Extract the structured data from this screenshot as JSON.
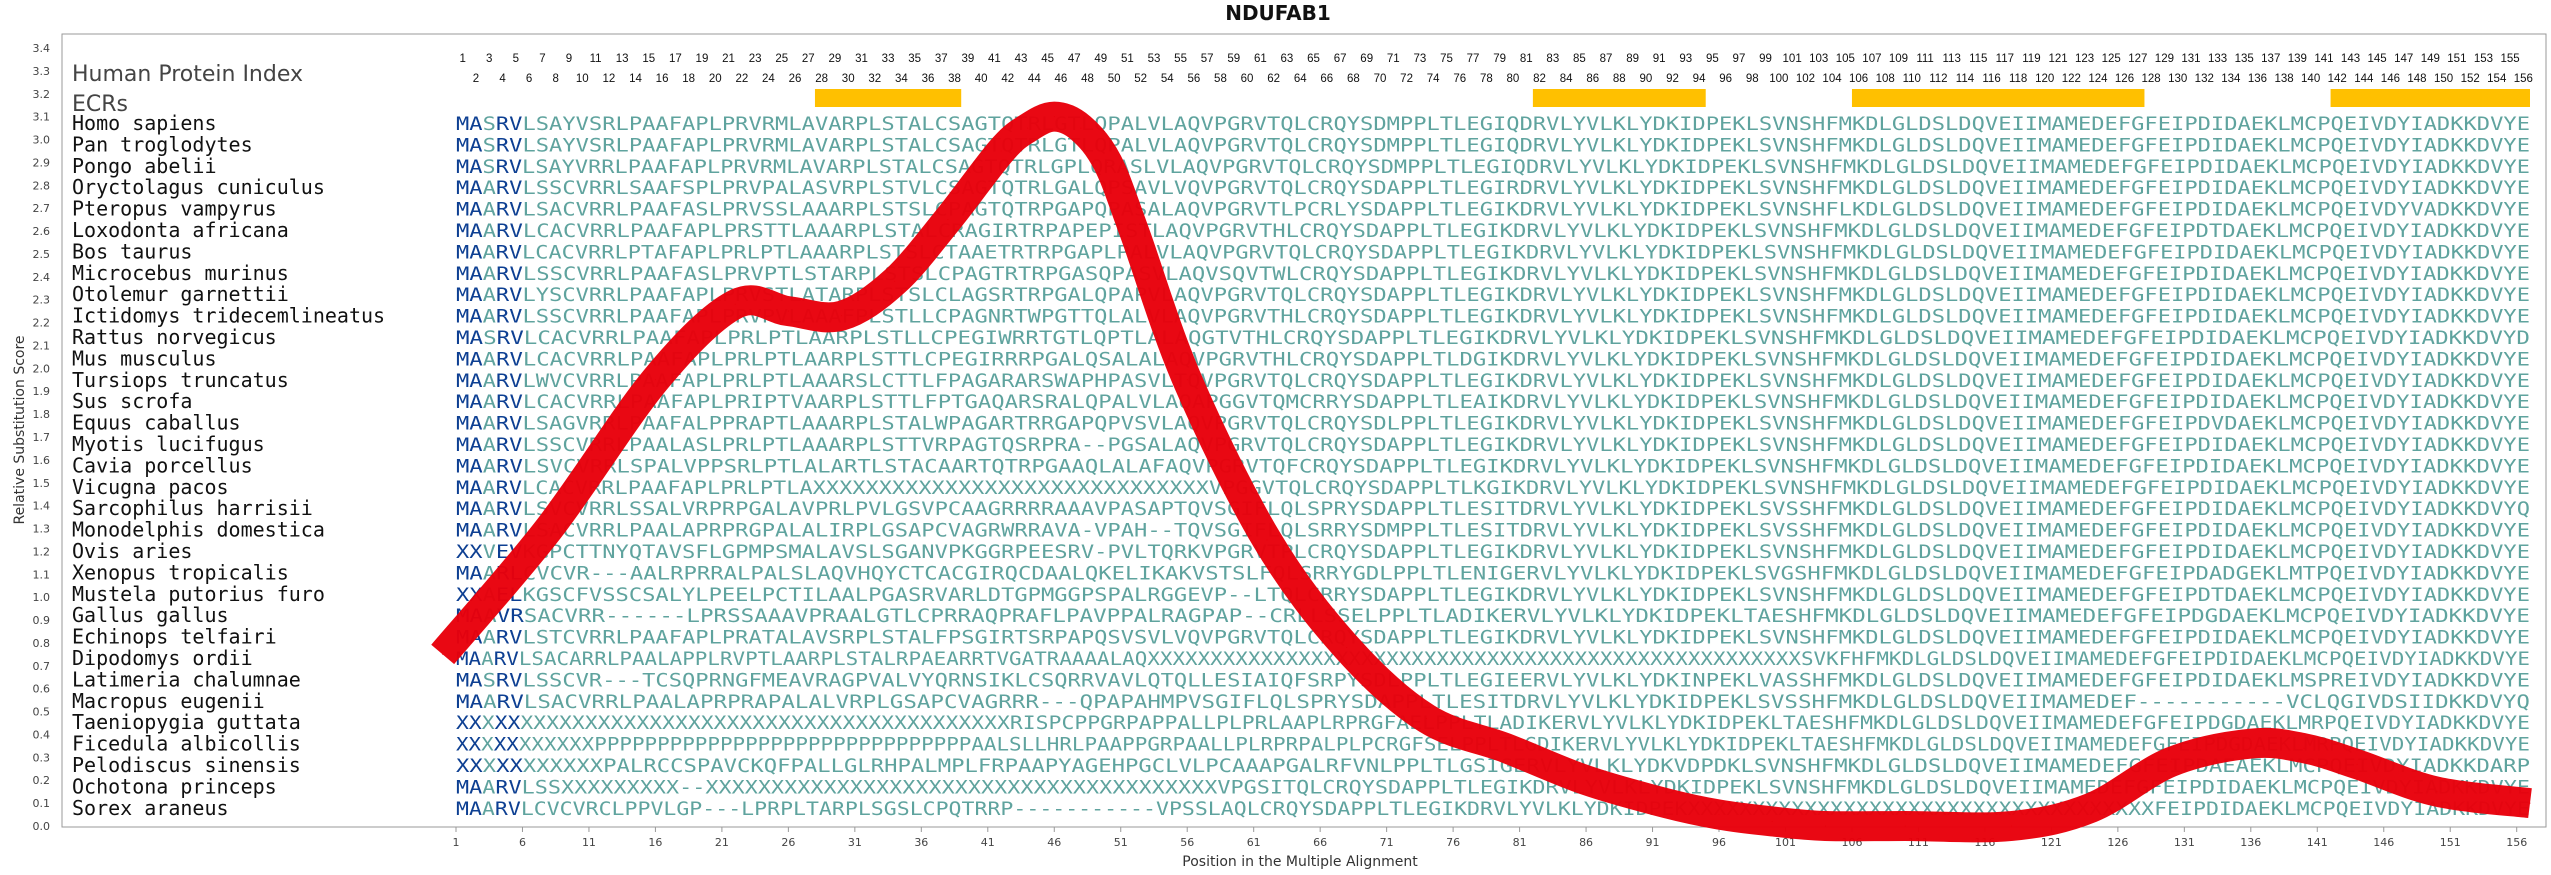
{
  "chart_data": {
    "type": "line",
    "title": "NDUFAB1",
    "xlabel": "Position in the Multiple Alignment",
    "ylabel": "Relative Substitution Score",
    "ylim": [
      0,
      3.4
    ],
    "xlim": [
      1,
      157
    ],
    "y_ticks": [
      "0.0",
      "0.1",
      "0.2",
      "0.3",
      "0.4",
      "0.5",
      "0.6",
      "0.7",
      "0.8",
      "0.9",
      "1.0",
      "1.1",
      "1.2",
      "1.3",
      "1.4",
      "1.5",
      "1.6",
      "1.7",
      "1.8",
      "1.9",
      "2.0",
      "2.1",
      "2.2",
      "2.3",
      "2.4",
      "2.5",
      "2.6",
      "2.7",
      "2.8",
      "2.9",
      "3.0",
      "3.1",
      "3.2",
      "3.3",
      "3.4"
    ],
    "x_ticks": [
      1,
      6,
      11,
      16,
      21,
      26,
      31,
      36,
      41,
      46,
      51,
      56,
      61,
      66,
      71,
      76,
      81,
      86,
      91,
      96,
      101,
      106,
      111,
      116,
      121,
      126,
      131,
      136,
      141,
      146,
      151,
      156
    ],
    "row_labels": [
      "Human Protein Index",
      "ECRs"
    ],
    "ecrs": [
      [
        28,
        39
      ],
      [
        82,
        95
      ],
      [
        106,
        128
      ],
      [
        142,
        157
      ]
    ],
    "series": [
      {
        "color": "#e8000b",
        "x": [
          0,
          8,
          16,
          22,
          26,
          30,
          34,
          38,
          42,
          44,
          46,
          48,
          50,
          52,
          56,
          62,
          68,
          74,
          80,
          86,
          92,
          96,
          100,
          104,
          110,
          118,
          124,
          130,
          136,
          140,
          144,
          150,
          157
        ],
        "y": [
          0.75,
          1.3,
          1.95,
          2.28,
          2.25,
          2.23,
          2.38,
          2.65,
          2.95,
          3.05,
          3.1,
          3.05,
          2.9,
          2.6,
          1.95,
          1.25,
          0.78,
          0.47,
          0.34,
          0.2,
          0.1,
          0.05,
          0.02,
          0.0,
          0.0,
          0.0,
          0.08,
          0.28,
          0.36,
          0.34,
          0.27,
          0.15,
          0.1
        ]
      }
    ],
    "alignment": {
      "species": [
        "Homo sapiens",
        "Pan troglodytes",
        "Pongo abelii",
        "Oryctolagus cuniculus",
        "Pteropus vampyrus",
        "Loxodonta africana",
        "Bos taurus",
        "Microcebus murinus",
        "Otolemur garnettii",
        "Ictidomys tridecemlineatus",
        "Rattus norvegicus",
        "Mus musculus",
        "Tursiops truncatus",
        "Sus scrofa",
        "Equus caballus",
        "Myotis lucifugus",
        "Cavia porcellus",
        "Vicugna pacos",
        "Sarcophilus harrisii",
        "Monodelphis domestica",
        "Ovis aries",
        "Xenopus tropicalis",
        "Mustela putorius furo",
        "Gallus gallus",
        "Echinops telfairi",
        "Dipodomys ordii",
        "Latimeria chalumnae",
        "Macropus eugenii",
        "Taeniopygia guttata",
        "Ficedula albicollis",
        "Pelodiscus sinensis",
        "Ochotona princeps",
        "Sorex araneus"
      ],
      "sequences": [
        "MASRVLSAYVSRLPAAFAPLPRVRMLAVARPLSTALCSAGTQTRLGTLQPALVLAQVPGRVTQLCRQYSDMPPLTLEGIQDRVLYVLKLYDKIDPEKLSVNSHFMKDLGLDSLDQVEIIMAMEDEFGFEIPDIDAEKLMCPQEIVDYIADKKDVYE",
        "MASRVLSAYVSRLPAAFAPLPRVRMLAVARPLSTALCSAGTQTRLGTLQPALVLAQVPGRVTQLCRQYSDMPPLTLEGIQDRVLYVLKLYDKIDPEKLSVNSHFMKDLGLDSLDQVEIIMAMEDEFGFEIPDIDAEKLMCPQEIVDYIADKKDVYE",
        "MASRVLSAYVRRLPAAFAPLPRVRMLAVARPLSTALCSAGTQTRLGPLQRASLVLAQVPGRVTQLCRQYSDMPPLTLEGIQDRVLYVLKLYDKIDPEKLSVNSHFMKDLGLDSLDQVEIIMAMEDEFGFEIPDIDAEKLMCPQEIVDYIADKKDVYE",
        "MAARVLSSCVRRLSAAFSPLPRVPALASVRPLSTVLCSAGTQTRLGALQPSAVLVQVPGRVTQLCRQYSDAPPLTLEGIRDRVLYVLKLYDKIDPEKLSVNSHFMKDLGLDSLDQVEIIMAMEDEFGFEIPDIDAEKLMCPQEIVDYIADKKDVYE",
        "MAARVLSACVRRLPAAFASLPRVSSLAAARPLSTSLCPAGTQTRPGAPQPASALAQVPGRVTLPCRLYSDAPPLTLEGIKDRVLYVLKLYDKIDPEKLSVNSHFLKDLGLDSLDQVEIIMAMEDEFGFEIPDIDAEKLMCPQEIVDYVADKKDVYE",
        "MAARVLCACVRRLPAAFAPLPRSTTLAAARPLSTALCRAGIRTRPAPEPISTLAQVPGRVTHLCRQYSDAPPLTLEGIKDRVLYVLKLYDKIDPEKLSVNSHFMKDLGLDSLDQVEIIMAMEDEFGFEIPDTDAEKLMCPQEIVDYIADKKDVYE",
        "MAARVLCACVRRLPTAFAPLPRLPTLAAARPLSTSLCTAAETRTRPGAPLPALVLAQVPGRVTQLCRQYSDAPPLTLEGIKDRVLYVLKLYDKIDPEKLSVNSHFMKDLGLDSLDQVEIIMAMEDEFGFEIPDIDAEKLMCPQEIVDYIADKKDVYE",
        "MAARVLSSCVRRLPAAFASLPRVPTLSTARPLSTSLCPAGTRTRPGASQPASVLAQVSQVTWLCRQYSDAPPLTLEGIKDRVLYVLKLYDKIDPEKLSVNSHFMKDLGLDSLDQVEIIMAMEDEFGFEIPDIDAEKLMCPQEIVDYIADKKDVYE",
        "MAARVLYSCVRRLPAAFAPLPRVSTLATARPLSTSLCLAGSRTRPGALQPAPVLAQVPGRVTQLCRQYSDAPPLTLEGIKDRVLYVLKLYDKIDPEKLSVNSHFMKDLGLDSLDQVEIIMAMEDEFGFEIPDIDAEKLMCPQEIVDYIADKKDVYE",
        "MAARVLSSCVRRLPAAFAPLPRVPVLAAAFPLSTLLCPAGNRTWPGTTQLALVLAQVPGRVTHLCRQYSDAPPLTLEGIKDRVLYVLKLYDKIDPEKLSVNSHFMKDLGLDSLDQVEIIMAMEDEFGFEIPDIDAEKLMCPQEIVDYIADKKDVYE",
        "MASRVLCACVRRLPAAFAPLPRLPTLAARPLSTLLCPEGIWRRTGTLQPTLALAQGTVTHLCRQYSDAPPLTLEGIKDRVLYVLKLYDKIDPEKLSVNSHFMKDLGLDSLDQVEIIMAMEDEFGFEIPDIDAEKLMCPQEIVDYIADKKDVYD",
        "MAARVLCACVRRLPAAFAPLPRLPTLAARPLSTTLCPEGIRRRPGALQSALALAQVPGRVTHLCRQYSDAPPLTLDGIKDRVLYVLKLYDKIDPEKLSVNSHFMKDLGLDSLDQVEIIMAMEDEFGFEIPDIDAEKLMCPQEIVDYIADKKDVYE",
        "MAARVLWVCVRRLPAAFAPLPRLPTLAAARSLCTTLFPAGARARSWAPHPASVLTQVPGRVTQLCRQYSDAPPLTLEGIKDRVLYVLKLYDKIDPEKLSVNSHFMKDLGLDSLDQVEIIMAMEDEFGFEIPDIDAEKLMCPQEIVDYIADKKDVYE",
        "MAARVLCACVRRLPAAFAPLPRIPTVAARPLSTTLFPTGAQARSRALQPALVLAQAPGGVTQMCRRYSDAPPLTLEAIKDRVLYVLKLYDKIDPEKLSVNSHFMKDLGLDSLDQVEIIMAMEDEFGFEIPDIDAEKLMCPQEIVDYIADKKDVYE",
        "MAARVLSAGVRRLPAAFALPPRAPTLAAARPLSTALWPAGARTRRGAPQPVSVLAQVPGRVTQLCRQYSDLPPLTLEGIKDRVLYVLKLYDKIDPEKLSVNSHFMKDLGLDSLDQVEIIMAMEDEFGFEIPDVDAEKLMCPQEIVDYIADKKDVYE",
        "MAARVLSSCVRRLPAALASLPRLPTLAAARPLSTTVRPAGTQSRPRA--PGSALAQVPGRVTQLCRQYSDAPPLTLEGIKDRVLYVLKLYDKIDPEKLSVNSHFMKDLGLDSLDQVEIIMAMEDEFGFEIPDIDAEKLMCPQEIVDYIADKKDVYE",
        "MAARVLSVCVRRLSPALVPPSRLPTLALARTLSTACAARTQTRPGAAQLALAFAQVPGRVTQFCRQYSDAPPLTLEGIKDRVLYVLKLYDKIDPEKLSVNSHFMKDLGLDSLDQVEIIMAMEDEFGFEIPDIDAEKLMCPQEIVDYIADKKDVYE",
        "MAARVLCACVRRLPAAFAPLPRLPTLAXXXXXXXXXXXXXXXXXXXXXXXXXXXXXXVPGGVTQLCRQYSDAPPLTLKGIKDRVLYVLKLYDKIDPEKLSVNSHFMKDLGLDSLDQVEIIMAMEDEFGFEIPDIDAEKLMCPQEIVDYIADKKDVYE",
        "MAARVLSVCVRRLSSALVRPRPGALAVPRLPVLGSVPCAAGRRRRAAAVPASAPTQVSGIFLQLSPRYSDAPPLTLESITDRVLYVLKLYDKIDPEKLSVSSHFMKDLGLDSLDQVEIIMAMEDEFGFEIPDIDAEKLMCPQEIVDYIADKKDVYQ",
        "MAARVLSACVRRLPAALAPRPRGPALALIRPLGSAPCVAGRWRRAVA-VPAH--TQVSGIFLQLSRRYSDMPPLTLESITDRVLYVLKLYDKIDPEKLSVSSHFMKDLGLDSLDQVEIIMAMEDEFGFEIPDIDAEKLMCPQEIVDYIADKKDVYE",
        "XXVEVKGPCTTNYQTAVSFLGPMPSMALAVSLSGANVPKGGRPEESRV-PVLTQRKVPGRVTPLCRQYSDAPPLTLEGIKDRVLYVLKLYDKIDPEKLSVNSHFMKDLGLDSLDQVEIIMAMEDEFGFEIPDIDAEKLMCPQEIVDYIADKKDVYE",
        "MAARLCVCVR---AALRPRRALPALSLAQVHQYCTCACGIRQCDAALQKELIKAKVSTSLFQLSRRYGDLPPLTLENIGERVLYVLKLYDKIDPEKLSVGSHFMKDLGLDSLDQVEIIMAMEDEFGFEIPDADGEKLMTPQEIVDYIADKKDVYE",
        "XXAELKGSCFVSSCSALYLPEELPCTILAALPGASRVARLDTGPMGGPSPALRGGEVP--LTQLCRRYSDAPPLTLEGIKDRVLYVLKLYDKIDPEKLSVNSHFMKDLGLDSLDQVEIIMAMEDEFGFEIPDTDAEKLMCPQEIVDYIADKKDVYE",
        "MAAVRSACVRR------LPRSSAAAVPRAALGTLCPRRAQPRAFLPAVPPALRAGPAP--CRLLSSELPPLTLADIKERVLYVLKLYDKIDPEKLTAESHFMKDLGLDSLDQVEIIMAMEDEFGFEIPDGDAEKLMCPQEIVDYIADKKDVYE",
        "MAARVLSTCVRRLPAAFAPLPRATALAVSRPLSTALFPSGIRTSRPAPQSVSVLVQVPGRVTQLCRQYSDAPPLTLEGIKDRVLYVLKLYDKIDPEKLSVNSHFMKDLGLDSLDQVEIIMAMEDEFGFEIPDIDAEKLMCPQEIVDYIADKKDVYE",
        "MAARVLSACARRLPAALAPPLRVPTLAARPLSTALRPAEARRTVGATRAAAALAQXXXXXXXXXXXXXXXXXXXXXXXXXXXXXXXXXXXXXXXXXXXXXXXXXXXXSVKFHFMKDLGLDSLDQVEIIMAMEDEFGFEIPDIDAEKLMCPQEIVDYIADKKDVYE",
        "MASRVLSSCVR---TCSQPRNGFMEAVRAGPVALVYQRNSIKLCSQRRVAVLQTQLLESIAIQFSRPYSDLPPLTLEGIEERVLYVLKLYDKINPEKLVASSHFMKDLGLDSLDQVEIIMAMEDEFGFEIPDIDAEKLMSPREIVDYIADKKDVYE",
        "MAARVLSACVRRLPAALAPRPRAPALALVRPLGSAPCVAGRRR---QPAPAHMPVSGIFLQLSPRYSDAPPLTLESITDRVLYVLKLYDKIDPEKLSVSSHFMKDLGLDSLDQVEIIMAMEDEF-----------VCLQGIVDSIIDKKDVYQ",
        "XXXXXXXXXXXXXXXXXXXXXXXXXXXXXXXXXXXXXXXXXXXRISPCPPGRPAPPALLPLPRLAAPLRPRGFAELPPLTLADIKERVLYVLKLYDKIDPEKLTAESHFMKDLGLDSLDQVEIIMAMEDEFGFEIPDGDAEKLMRPQEIVDYIADKKDVYE",
        "XXXXXXXXXXXPPPPPPPPPPPPPPPPPPPPPPPPPPPPPPAALSLLHRLPAAPPGRPAALLPLRPRPALPLPCRGFSELPPLTLGDIKERVLYVLKLYDKIDPEKLTAESHFMKDLGLDSLDQVEIIMAMEDEFGFEIPDGDAEKLMRPQEIVDYIADKKDVYE",
        "XXXXXXXXXXXPALRCCSPAVCKQFPALLGLRHPALMPLFRPAAPYAGEHPGCLVLPCAAAPGALRFVNLPPLTLGSIGERVLYVLKLYDKVDPDKLSVNSHFMKDLGLDSLDQVEIIMAMEDEFGFEIPDAEAEKLMCPQEIVDYIADKKDARP",
        "MAARVLSSXXXXXXXXX--XXXXXXXXXXXXXXXXXXXXXXXXXXXXXXXXXXXXXXXVPGSITQLCRQYSDAPPLTLEGIKDRVLYVLKLYDKIDPEKLSVNSHFMKDLGLDSLDQVEIIMAMEDEFGFEIPDIDAEKLMCPQEIVDYIADKKDVYE",
        "MAARVLCVCVRCLPPVLGP---LPRPLTARPLSGSLCPQTRRP-----------VPSSLAQLCRQYSDAPPLTLEGIKDRVLYVLKLYDKIDPEKXXXXXXXXXXXXXXXXXXXXXXXXXXXXXXXXXXXXFEIPDIDAEKLMCPQEIVDYIADKKDVYE"
      ]
    }
  },
  "colors": {
    "ecr": "#ffc000",
    "line": "#e8000b",
    "conserved": "#0d3f92",
    "variable": "#5fa39e"
  }
}
